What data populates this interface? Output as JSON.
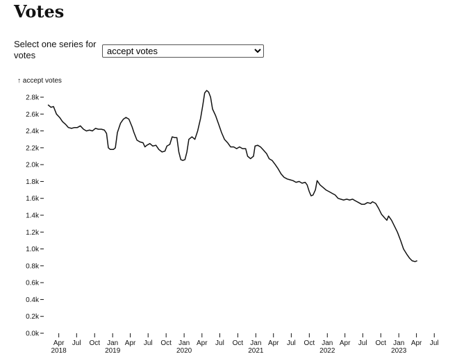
{
  "page": {
    "title": "Votes"
  },
  "controls": {
    "select_label": "Select one series for votes",
    "selected": "accept votes"
  },
  "chart_data": {
    "type": "line",
    "ylabel": "↑ accept votes",
    "xlabel": "",
    "ylim": [
      0,
      2800
    ],
    "yticks": [
      0,
      200,
      400,
      600,
      800,
      1000,
      1200,
      1400,
      1600,
      1800,
      2000,
      2200,
      2400,
      2600,
      2800
    ],
    "ytick_labels": [
      "0.0k",
      "0.2k",
      "0.4k",
      "0.6k",
      "0.8k",
      "1.0k",
      "1.2k",
      "1.4k",
      "1.6k",
      "1.8k",
      "2.0k",
      "2.2k",
      "2.4k",
      "2.6k",
      "2.8k"
    ],
    "xlim": [
      "2018-02-01",
      "2023-08-01"
    ],
    "xticks": [
      {
        "date": "2018-04-01",
        "label": "Apr",
        "year": "2018"
      },
      {
        "date": "2018-07-01",
        "label": "Jul",
        "year": ""
      },
      {
        "date": "2018-10-01",
        "label": "Oct",
        "year": ""
      },
      {
        "date": "2019-01-01",
        "label": "Jan",
        "year": "2019"
      },
      {
        "date": "2019-04-01",
        "label": "Apr",
        "year": ""
      },
      {
        "date": "2019-07-01",
        "label": "Jul",
        "year": ""
      },
      {
        "date": "2019-10-01",
        "label": "Oct",
        "year": ""
      },
      {
        "date": "2020-01-01",
        "label": "Jan",
        "year": "2020"
      },
      {
        "date": "2020-04-01",
        "label": "Apr",
        "year": ""
      },
      {
        "date": "2020-07-01",
        "label": "Jul",
        "year": ""
      },
      {
        "date": "2020-10-01",
        "label": "Oct",
        "year": ""
      },
      {
        "date": "2021-01-01",
        "label": "Jan",
        "year": "2021"
      },
      {
        "date": "2021-04-01",
        "label": "Apr",
        "year": ""
      },
      {
        "date": "2021-07-01",
        "label": "Jul",
        "year": ""
      },
      {
        "date": "2021-10-01",
        "label": "Oct",
        "year": ""
      },
      {
        "date": "2022-01-01",
        "label": "Jan",
        "year": "2022"
      },
      {
        "date": "2022-04-01",
        "label": "Apr",
        "year": ""
      },
      {
        "date": "2022-07-01",
        "label": "Jul",
        "year": ""
      },
      {
        "date": "2022-10-01",
        "label": "Oct",
        "year": ""
      },
      {
        "date": "2023-01-01",
        "label": "Jan",
        "year": "2023"
      },
      {
        "date": "2023-04-01",
        "label": "Apr",
        "year": ""
      },
      {
        "date": "2023-07-01",
        "label": "Jul",
        "year": ""
      }
    ],
    "series": [
      {
        "points": [
          [
            "2018-02-05",
            2710
          ],
          [
            "2018-02-20",
            2680
          ],
          [
            "2018-03-05",
            2690
          ],
          [
            "2018-03-20",
            2600
          ],
          [
            "2018-04-05",
            2560
          ],
          [
            "2018-04-20",
            2510
          ],
          [
            "2018-05-05",
            2480
          ],
          [
            "2018-05-20",
            2440
          ],
          [
            "2018-06-05",
            2430
          ],
          [
            "2018-06-20",
            2440
          ],
          [
            "2018-07-05",
            2440
          ],
          [
            "2018-07-20",
            2460
          ],
          [
            "2018-08-05",
            2420
          ],
          [
            "2018-08-20",
            2400
          ],
          [
            "2018-09-05",
            2410
          ],
          [
            "2018-09-20",
            2400
          ],
          [
            "2018-10-05",
            2430
          ],
          [
            "2018-10-20",
            2420
          ],
          [
            "2018-11-05",
            2420
          ],
          [
            "2018-11-20",
            2410
          ],
          [
            "2018-12-01",
            2370
          ],
          [
            "2018-12-10",
            2200
          ],
          [
            "2018-12-20",
            2180
          ],
          [
            "2019-01-05",
            2180
          ],
          [
            "2019-01-15",
            2200
          ],
          [
            "2019-01-25",
            2380
          ],
          [
            "2019-02-10",
            2490
          ],
          [
            "2019-02-25",
            2540
          ],
          [
            "2019-03-10",
            2560
          ],
          [
            "2019-03-25",
            2540
          ],
          [
            "2019-04-10",
            2450
          ],
          [
            "2019-04-20",
            2380
          ],
          [
            "2019-05-05",
            2290
          ],
          [
            "2019-05-20",
            2270
          ],
          [
            "2019-06-05",
            2260
          ],
          [
            "2019-06-15",
            2210
          ],
          [
            "2019-06-25",
            2230
          ],
          [
            "2019-07-10",
            2250
          ],
          [
            "2019-07-25",
            2220
          ],
          [
            "2019-08-10",
            2230
          ],
          [
            "2019-08-25",
            2180
          ],
          [
            "2019-09-10",
            2150
          ],
          [
            "2019-09-25",
            2160
          ],
          [
            "2019-10-05",
            2220
          ],
          [
            "2019-10-20",
            2240
          ],
          [
            "2019-11-01",
            2330
          ],
          [
            "2019-11-15",
            2320
          ],
          [
            "2019-11-25",
            2320
          ],
          [
            "2019-12-05",
            2150
          ],
          [
            "2019-12-15",
            2060
          ],
          [
            "2019-12-25",
            2050
          ],
          [
            "2020-01-05",
            2060
          ],
          [
            "2020-01-15",
            2150
          ],
          [
            "2020-01-25",
            2300
          ],
          [
            "2020-02-10",
            2330
          ],
          [
            "2020-02-25",
            2300
          ],
          [
            "2020-03-10",
            2400
          ],
          [
            "2020-03-25",
            2550
          ],
          [
            "2020-04-05",
            2700
          ],
          [
            "2020-04-15",
            2850
          ],
          [
            "2020-04-25",
            2880
          ],
          [
            "2020-05-05",
            2860
          ],
          [
            "2020-05-15",
            2800
          ],
          [
            "2020-05-25",
            2660
          ],
          [
            "2020-06-10",
            2580
          ],
          [
            "2020-06-25",
            2480
          ],
          [
            "2020-07-10",
            2380
          ],
          [
            "2020-07-25",
            2300
          ],
          [
            "2020-08-10",
            2260
          ],
          [
            "2020-08-25",
            2210
          ],
          [
            "2020-09-10",
            2210
          ],
          [
            "2020-09-25",
            2190
          ],
          [
            "2020-10-10",
            2210
          ],
          [
            "2020-10-25",
            2190
          ],
          [
            "2020-11-10",
            2190
          ],
          [
            "2020-11-20",
            2100
          ],
          [
            "2020-12-05",
            2070
          ],
          [
            "2020-12-20",
            2100
          ],
          [
            "2020-12-28",
            2220
          ],
          [
            "2021-01-10",
            2230
          ],
          [
            "2021-01-25",
            2210
          ],
          [
            "2021-02-10",
            2170
          ],
          [
            "2021-02-25",
            2130
          ],
          [
            "2021-03-10",
            2070
          ],
          [
            "2021-03-25",
            2050
          ],
          [
            "2021-04-10",
            2000
          ],
          [
            "2021-04-25",
            1950
          ],
          [
            "2021-05-10",
            1890
          ],
          [
            "2021-05-25",
            1850
          ],
          [
            "2021-06-10",
            1830
          ],
          [
            "2021-06-25",
            1820
          ],
          [
            "2021-07-10",
            1810
          ],
          [
            "2021-07-25",
            1790
          ],
          [
            "2021-08-10",
            1800
          ],
          [
            "2021-08-25",
            1780
          ],
          [
            "2021-09-10",
            1790
          ],
          [
            "2021-09-20",
            1760
          ],
          [
            "2021-10-01",
            1680
          ],
          [
            "2021-10-10",
            1630
          ],
          [
            "2021-10-20",
            1640
          ],
          [
            "2021-11-01",
            1700
          ],
          [
            "2021-11-10",
            1810
          ],
          [
            "2021-11-25",
            1760
          ],
          [
            "2021-12-10",
            1730
          ],
          [
            "2021-12-25",
            1700
          ],
          [
            "2022-01-10",
            1680
          ],
          [
            "2022-01-25",
            1660
          ],
          [
            "2022-02-10",
            1640
          ],
          [
            "2022-02-25",
            1600
          ],
          [
            "2022-03-10",
            1590
          ],
          [
            "2022-03-25",
            1580
          ],
          [
            "2022-04-10",
            1590
          ],
          [
            "2022-04-25",
            1580
          ],
          [
            "2022-05-10",
            1590
          ],
          [
            "2022-05-25",
            1570
          ],
          [
            "2022-06-10",
            1550
          ],
          [
            "2022-06-25",
            1530
          ],
          [
            "2022-07-10",
            1530
          ],
          [
            "2022-07-25",
            1550
          ],
          [
            "2022-08-10",
            1540
          ],
          [
            "2022-08-20",
            1560
          ],
          [
            "2022-09-05",
            1540
          ],
          [
            "2022-09-20",
            1480
          ],
          [
            "2022-10-05",
            1410
          ],
          [
            "2022-10-20",
            1370
          ],
          [
            "2022-11-01",
            1340
          ],
          [
            "2022-11-10",
            1390
          ],
          [
            "2022-11-25",
            1340
          ],
          [
            "2022-12-10",
            1270
          ],
          [
            "2022-12-25",
            1200
          ],
          [
            "2023-01-10",
            1100
          ],
          [
            "2023-01-25",
            1000
          ],
          [
            "2023-02-10",
            940
          ],
          [
            "2023-02-25",
            890
          ],
          [
            "2023-03-10",
            860
          ],
          [
            "2023-03-25",
            850
          ],
          [
            "2023-04-05",
            860
          ]
        ]
      }
    ]
  }
}
